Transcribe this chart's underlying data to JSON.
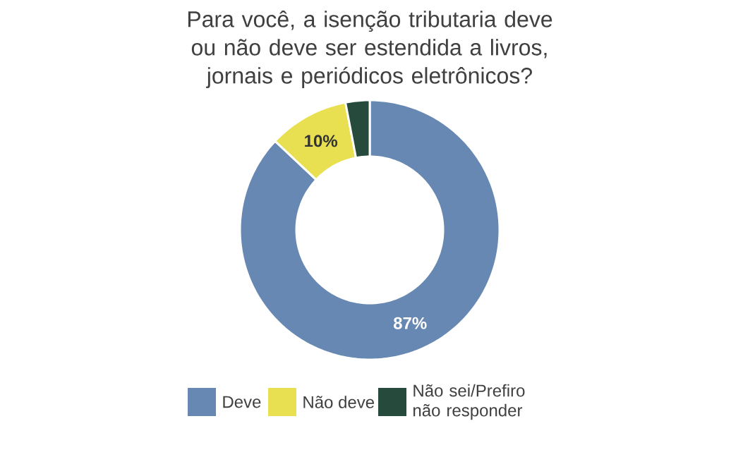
{
  "chart_data": {
    "type": "donut",
    "title": "Para você, a isenção tributaria deve ou não deve ser estendida a livros, jornais e periódicos eletrônicos?",
    "categories": [
      "Deve",
      "Não deve",
      "Não sei/Prefiro não responder"
    ],
    "values": [
      87,
      10,
      3
    ],
    "colors": [
      "#6688b3",
      "#e8e050",
      "#264a3c"
    ],
    "value_labels": [
      "87%",
      "10%",
      null
    ],
    "legend": "bottom"
  }
}
